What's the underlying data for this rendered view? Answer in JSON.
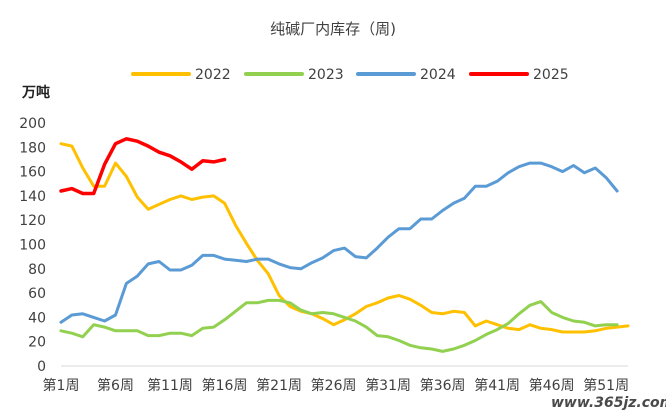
{
  "chart_data": {
    "type": "line",
    "title": "纯碱厂内库存（周)",
    "ylabel": "万吨",
    "xlabel": "",
    "ylim": [
      0,
      200
    ],
    "yticks": [
      0,
      20,
      40,
      60,
      80,
      100,
      120,
      140,
      160,
      180,
      200
    ],
    "grid": false,
    "legend_position": "top",
    "x_weeks": [
      1,
      2,
      3,
      4,
      5,
      6,
      7,
      8,
      9,
      10,
      11,
      12,
      13,
      14,
      15,
      16,
      17,
      18,
      19,
      20,
      21,
      22,
      23,
      24,
      25,
      26,
      27,
      28,
      29,
      30,
      31,
      32,
      33,
      34,
      35,
      36,
      37,
      38,
      39,
      40,
      41,
      42,
      43,
      44,
      45,
      46,
      47,
      48,
      49,
      50,
      51,
      52,
      53
    ],
    "x_tick_labels": [
      "第1周",
      "第6周",
      "第11周",
      "第16周",
      "第21周",
      "第26周",
      "第31周",
      "第36周",
      "第41周",
      "第46周",
      "第51周"
    ],
    "x_tick_weeks": [
      1,
      6,
      11,
      16,
      21,
      26,
      31,
      36,
      41,
      46,
      51
    ],
    "series": [
      {
        "name": "2022",
        "color": "#FFC000",
        "values": [
          183,
          181,
          163,
          148,
          148,
          167,
          156,
          139,
          129,
          133,
          137,
          140,
          137,
          139,
          140,
          134,
          116,
          101,
          87,
          76,
          58,
          49,
          45,
          43,
          39,
          34,
          38,
          43,
          49,
          52,
          56,
          58,
          55,
          50,
          44,
          43,
          45,
          44,
          33,
          37,
          34,
          31,
          30,
          34,
          31,
          30,
          28,
          28,
          28,
          29,
          31,
          32,
          33
        ]
      },
      {
        "name": "2023",
        "color": "#92D050",
        "values": [
          29,
          27,
          24,
          34,
          32,
          29,
          29,
          29,
          25,
          25,
          27,
          27,
          25,
          31,
          32,
          38,
          45,
          52,
          52,
          54,
          54,
          52,
          46,
          43,
          44,
          43,
          40,
          37,
          32,
          25,
          24,
          21,
          17,
          15,
          14,
          12,
          14,
          17,
          21,
          26,
          30,
          35,
          43,
          50,
          53,
          44,
          40,
          37,
          36,
          33,
          34,
          34,
          null
        ]
      },
      {
        "name": "2024",
        "color": "#5B9BD5",
        "values": [
          36,
          42,
          43,
          40,
          37,
          42,
          68,
          74,
          84,
          86,
          79,
          79,
          83,
          91,
          91,
          88,
          87,
          86,
          88,
          88,
          84,
          81,
          80,
          85,
          89,
          95,
          97,
          90,
          89,
          97,
          106,
          113,
          113,
          121,
          121,
          128,
          134,
          138,
          148,
          148,
          152,
          159,
          164,
          167,
          167,
          164,
          160,
          165,
          159,
          163,
          155,
          144,
          null
        ]
      },
      {
        "name": "2025",
        "color": "#FF0000",
        "values": [
          144,
          146,
          142,
          142,
          166,
          183,
          187,
          185,
          181,
          176,
          173,
          168,
          162,
          169,
          168,
          170,
          null,
          null,
          null,
          null,
          null,
          null,
          null,
          null,
          null,
          null,
          null,
          null,
          null,
          null,
          null,
          null,
          null,
          null,
          null,
          null,
          null,
          null,
          null,
          null,
          null,
          null,
          null,
          null,
          null,
          null,
          null,
          null,
          null,
          null,
          null,
          null,
          null
        ]
      }
    ]
  },
  "watermark": "www.365jz.com"
}
